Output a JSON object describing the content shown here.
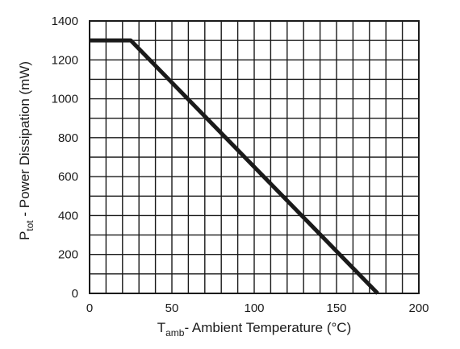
{
  "chart_data": {
    "type": "line",
    "title": "",
    "xlabel": {
      "main": "T",
      "sub": "amb",
      "rest": "- Ambient Temperature (°C)"
    },
    "ylabel": {
      "main": "P",
      "sub": "tot",
      "rest": " - Power  Dissipation (mW)"
    },
    "xlim": [
      0,
      200
    ],
    "ylim": [
      0,
      1400
    ],
    "x_ticks": [
      "0",
      "50",
      "100",
      "150",
      "200"
    ],
    "y_ticks": [
      "0",
      "200",
      "400",
      "600",
      "800",
      "1000",
      "1200",
      "1400"
    ],
    "x_tick_values": [
      0,
      50,
      100,
      150,
      200
    ],
    "y_tick_values": [
      0,
      200,
      400,
      600,
      800,
      1000,
      1200,
      1400
    ],
    "x_minor_step": 10,
    "y_minor_step": 100,
    "grid": true,
    "series": [
      {
        "x": [
          0,
          25,
          175
        ],
        "y": [
          1300,
          1300,
          0
        ],
        "color": "#1a1a1a"
      }
    ]
  }
}
